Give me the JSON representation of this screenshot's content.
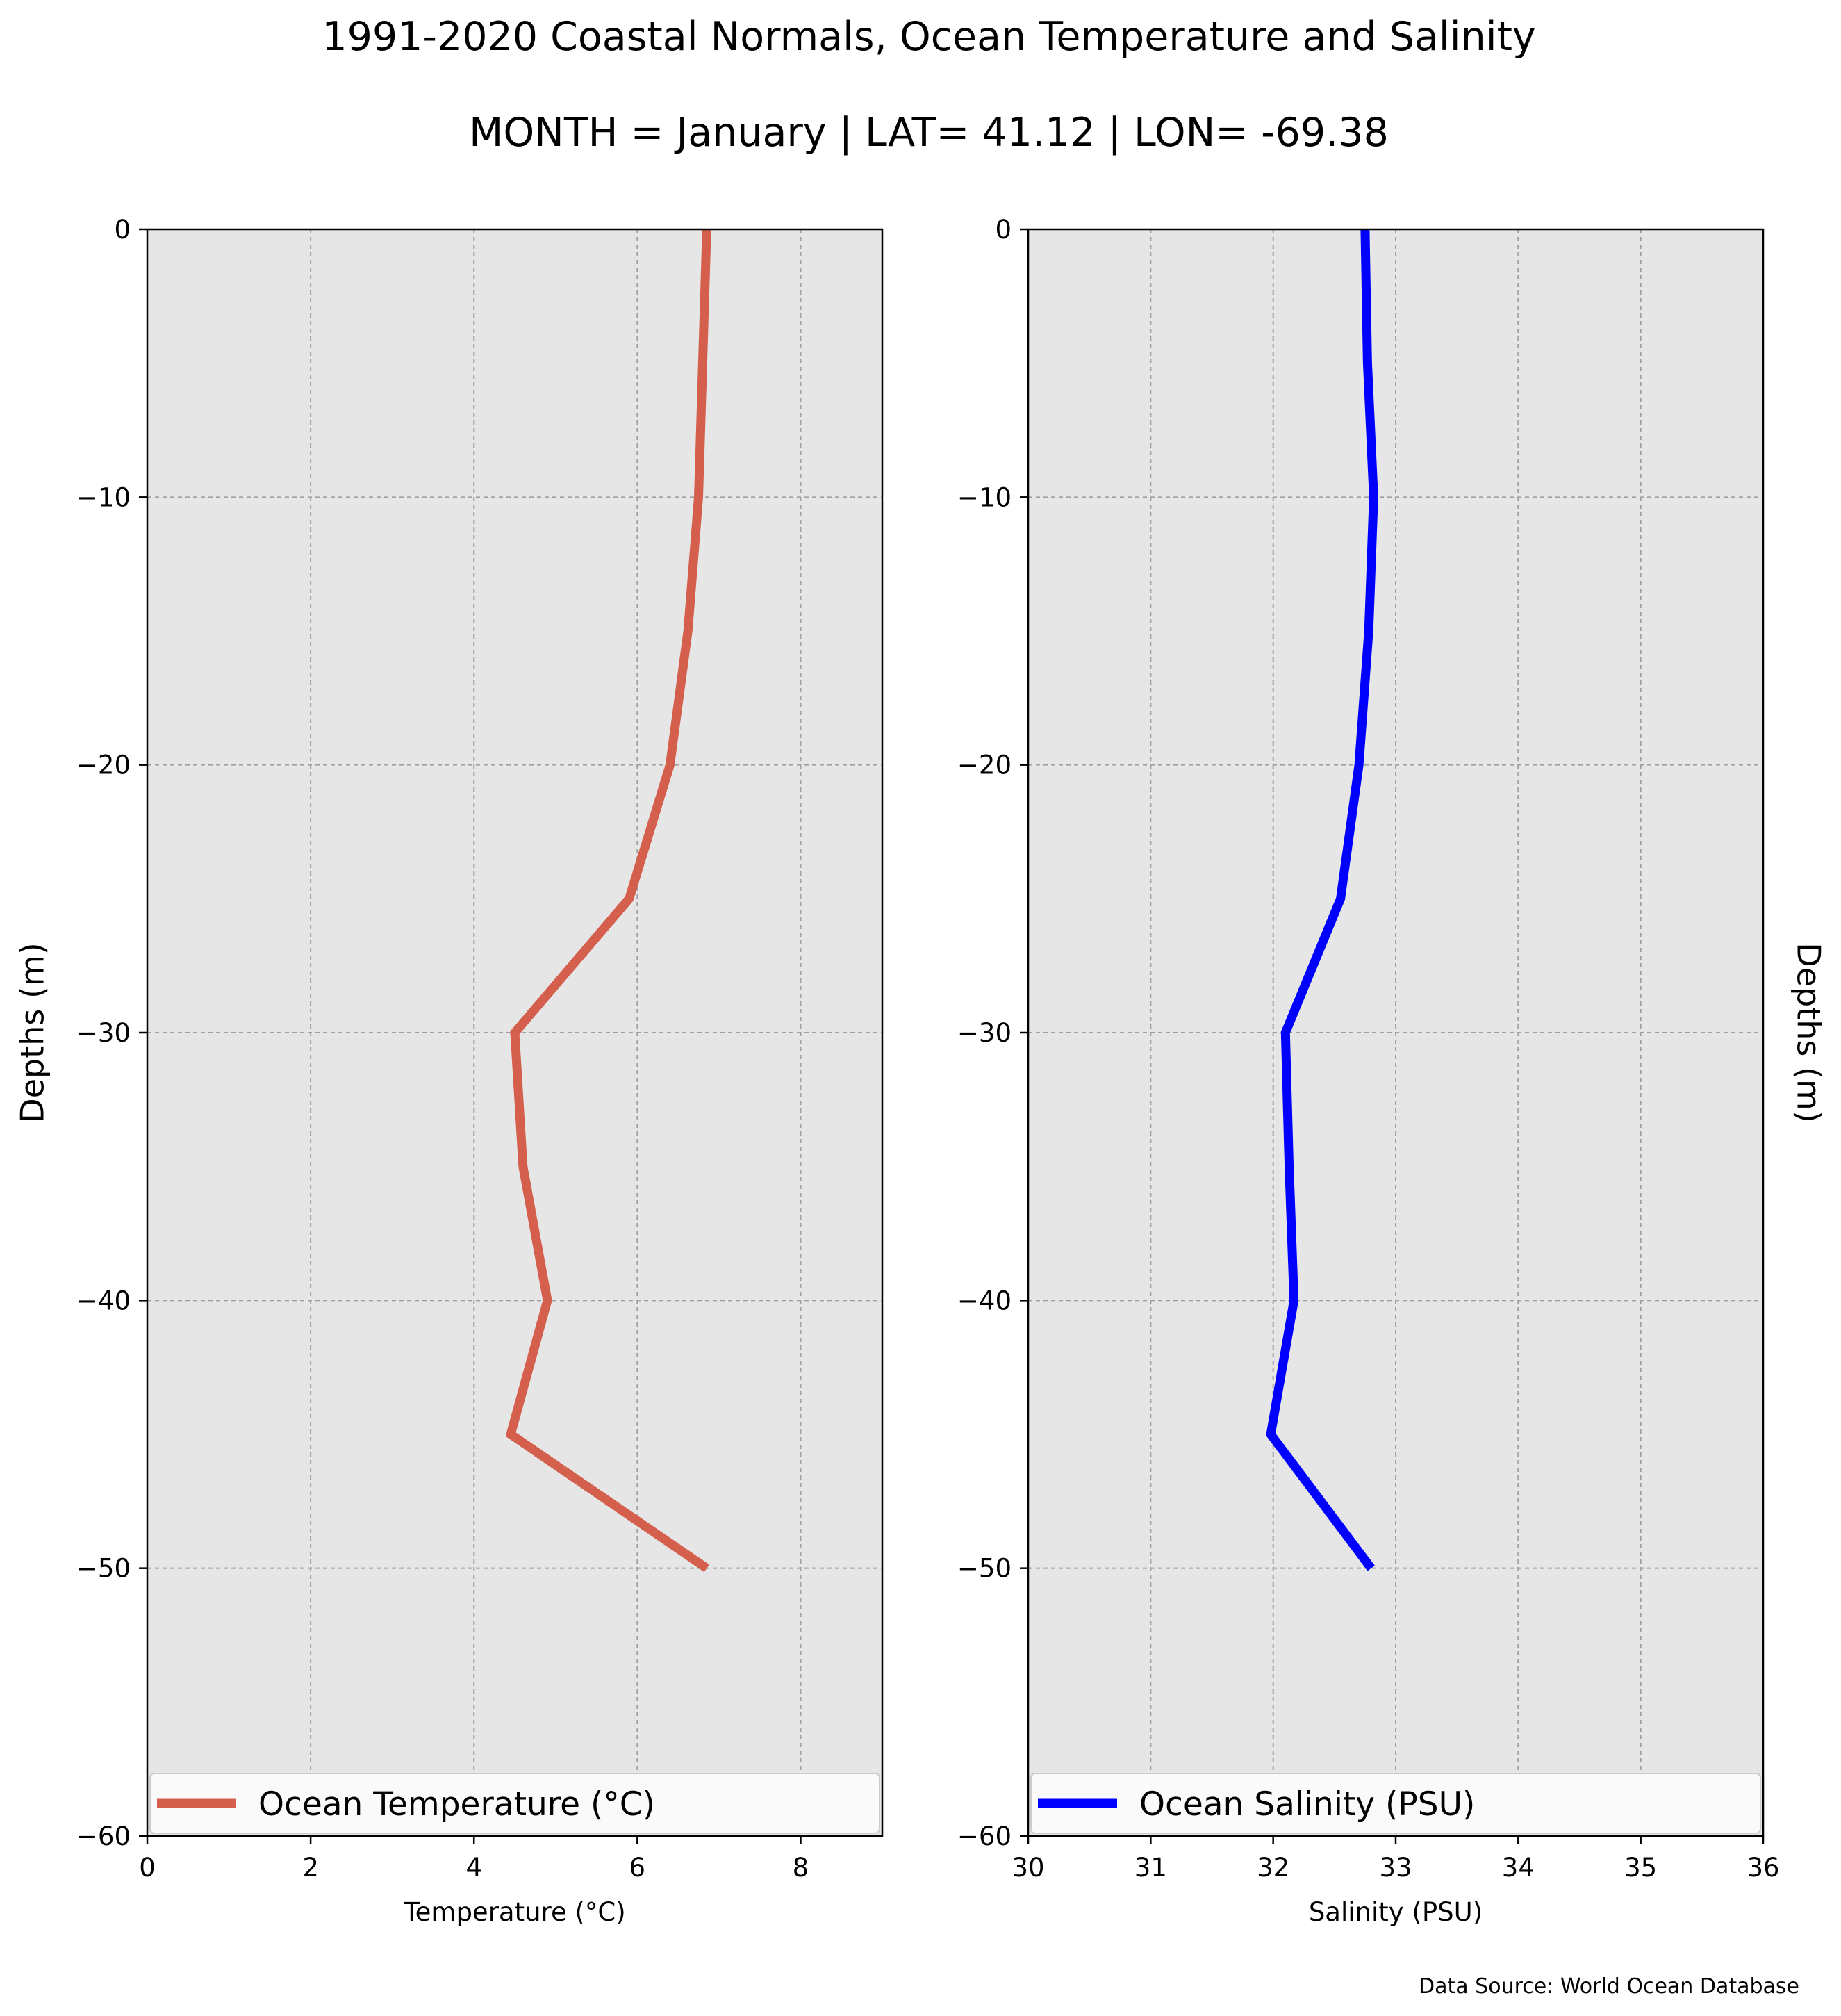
{
  "figure": {
    "title": "1991-2020 Coastal Normals, Ocean Temperature and Salinity",
    "subtitle": "MONTH = January | LAT= 41.12 | LON= -69.38",
    "source": "Data Source: World Ocean Database",
    "background_color": "#e6e6e6",
    "grid_color": "#a0a0a0"
  },
  "chart_data": [
    {
      "type": "line",
      "series": [
        {
          "name": "Ocean Temperature ($^\\circ$C)",
          "legend_label": "Ocean Temperature (°C)",
          "color": "#d45f4c",
          "x": [
            6.85,
            6.8,
            6.75,
            6.62,
            6.4,
            5.9,
            4.5,
            4.6,
            4.9,
            4.45,
            6.85
          ],
          "y": [
            0,
            -5,
            -10,
            -15,
            -20,
            -25,
            -30,
            -35,
            -40,
            -45,
            -50
          ]
        }
      ],
      "xlabel": "Temperature (°C)",
      "ylabel": "Depths (m)",
      "xlim": [
        0,
        9
      ],
      "ylim": [
        -60,
        0
      ],
      "xticks": [
        0,
        2,
        4,
        6,
        8
      ],
      "xtick_labels": [
        "0",
        "2",
        "4",
        "6",
        "8"
      ],
      "yticks": [
        0,
        -10,
        -20,
        -30,
        -40,
        -50,
        -60
      ],
      "ytick_labels": [
        "0",
        "−10",
        "−20",
        "−30",
        "−40",
        "−50",
        "−60"
      ],
      "grid": true,
      "legend": "lower center"
    },
    {
      "type": "line",
      "series": [
        {
          "name": "Ocean Salinity (PSU)",
          "legend_label": "Ocean Salinity (PSU)",
          "color": "#0000ff",
          "x": [
            32.75,
            32.77,
            32.82,
            32.78,
            32.7,
            32.55,
            32.1,
            32.13,
            32.17,
            31.98,
            32.8
          ],
          "y": [
            0,
            -5,
            -10,
            -15,
            -20,
            -25,
            -30,
            -35,
            -40,
            -45,
            -50
          ]
        }
      ],
      "xlabel": "Salinity (PSU)",
      "ylabel": "Depths (m)",
      "xlim": [
        30,
        36
      ],
      "ylim": [
        -60,
        0
      ],
      "xticks": [
        30,
        31,
        32,
        33,
        34,
        35,
        36
      ],
      "xtick_labels": [
        "30",
        "31",
        "32",
        "33",
        "34",
        "35",
        "36"
      ],
      "yticks": [
        0,
        -10,
        -20,
        -30,
        -40,
        -50,
        -60
      ],
      "ytick_labels": [
        "0",
        "−10",
        "−20",
        "−30",
        "−40",
        "−50",
        "−60"
      ],
      "grid": true,
      "legend": "lower center"
    }
  ]
}
